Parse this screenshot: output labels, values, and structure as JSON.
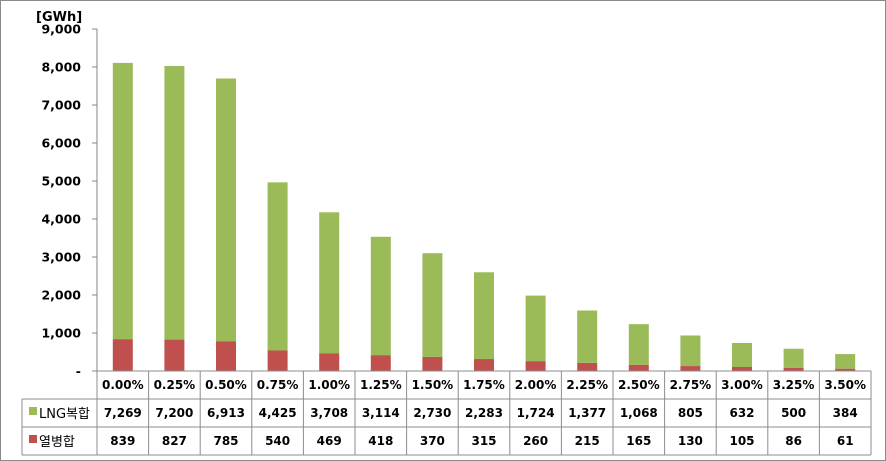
{
  "chart_data": {
    "type": "bar",
    "stacked": true,
    "unit_label": "[GWh]",
    "categories": [
      "0.00%",
      "0.25%",
      "0.50%",
      "0.75%",
      "1.00%",
      "1.25%",
      "1.50%",
      "1.75%",
      "2.00%",
      "2.25%",
      "2.50%",
      "2.75%",
      "3.00%",
      "3.25%",
      "3.50%"
    ],
    "ylim": [
      0,
      9000
    ],
    "yticks": [
      "-",
      "1,000",
      "2,000",
      "3,000",
      "4,000",
      "5,000",
      "6,000",
      "7,000",
      "8,000",
      "9,000"
    ],
    "grid": false,
    "series": [
      {
        "name": "열병합",
        "color": "#c0504d",
        "values": [
          839,
          827,
          785,
          540,
          469,
          418,
          370,
          315,
          260,
          215,
          165,
          130,
          105,
          86,
          61
        ],
        "labels": [
          "839",
          "827",
          "785",
          "540",
          "469",
          "418",
          "370",
          "315",
          "260",
          "215",
          "165",
          "130",
          "105",
          "86",
          "61"
        ]
      },
      {
        "name": "LNG복합",
        "color": "#9bbb59",
        "values": [
          7269,
          7200,
          6913,
          4425,
          3708,
          3114,
          2730,
          2283,
          1724,
          1377,
          1068,
          805,
          632,
          500,
          384
        ],
        "labels": [
          "7,269",
          "7,200",
          "6,913",
          "4,425",
          "3,708",
          "3,114",
          "2,730",
          "2,283",
          "1,724",
          "1,377",
          "1,068",
          "805",
          "632",
          "500",
          "384"
        ]
      }
    ],
    "table_rows": [
      "LNG복합",
      "열병합"
    ]
  }
}
